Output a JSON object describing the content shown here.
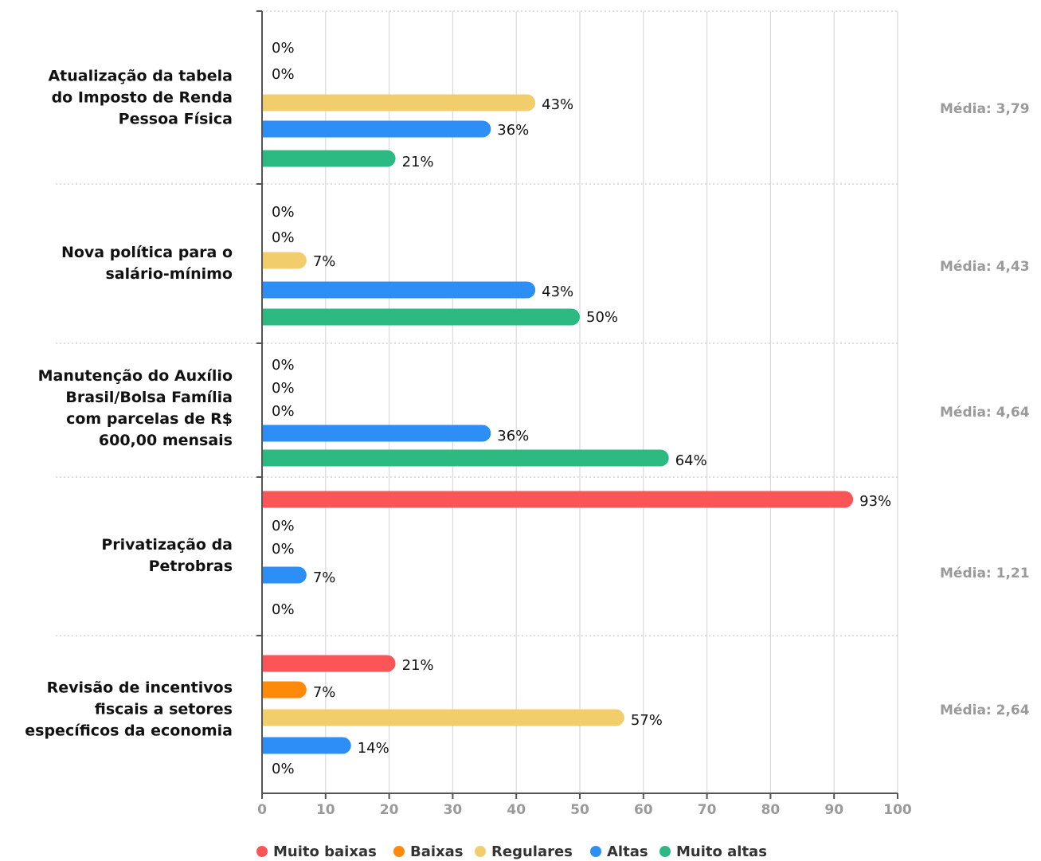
{
  "chart_data": {
    "type": "bar",
    "orientation": "horizontal",
    "categories": [
      "Atualização da tabela do Imposto de Renda Pessoa Física",
      "Nova política para o salário-mínimo",
      "Manutenção do Auxílio Brasil/Bolsa Família com parcelas de R$ 600,00 mensais",
      "Privatização da Petrobras",
      "Revisão de incentivos fiscais a setores específicos da economia"
    ],
    "category_lines": [
      [
        "Atualização da tabela",
        "do Imposto de Renda",
        "Pessoa Física"
      ],
      [
        "Nova política para o",
        "salário-mínimo"
      ],
      [
        "Manutenção do Auxílio",
        "Brasil/Bolsa Família",
        "com parcelas de R$",
        "600,00 mensais"
      ],
      [
        "Privatização da",
        "Petrobras"
      ],
      [
        "Revisão de incentivos",
        "fiscais a setores",
        "específicos da economia"
      ]
    ],
    "series": [
      {
        "name": "Muito baixas",
        "color": "#fc5558",
        "values": [
          0,
          0,
          0,
          93,
          21
        ]
      },
      {
        "name": "Baixas",
        "color": "#ff8a0a",
        "values": [
          0,
          0,
          0,
          0,
          7
        ]
      },
      {
        "name": "Regulares",
        "color": "#f2cd6c",
        "values": [
          43,
          7,
          0,
          0,
          57
        ]
      },
      {
        "name": "Altas",
        "color": "#2d8ff5",
        "values": [
          36,
          43,
          36,
          7,
          14
        ]
      },
      {
        "name": "Muito altas",
        "color": "#2db982",
        "values": [
          21,
          50,
          64,
          0,
          0
        ]
      }
    ],
    "value_labels": [
      [
        "0%",
        "0%",
        "43%",
        "36%",
        "21%"
      ],
      [
        "0%",
        "0%",
        "7%",
        "43%",
        "50%"
      ],
      [
        "0%",
        "0%",
        "0%",
        "36%",
        "64%"
      ],
      [
        "93%",
        "0%",
        "0%",
        "7%",
        "0%"
      ],
      [
        "21%",
        "7%",
        "57%",
        "14%",
        "0%"
      ]
    ],
    "averages": [
      "Média: 3,79",
      "Média: 4,43",
      "Média: 4,64",
      "Média: 1,21",
      "Média: 2,64"
    ],
    "xlim": [
      0,
      100
    ],
    "xticks": [
      "0",
      "10",
      "20",
      "30",
      "40",
      "50",
      "60",
      "70",
      "80",
      "90",
      "100"
    ],
    "grid": true,
    "legend_position": "bottom-center",
    "colors": {
      "grid": "#d9d9d9",
      "axis": "#555555",
      "tick_text": "#9a9a9a",
      "average_text": "#9a9a9a"
    }
  }
}
